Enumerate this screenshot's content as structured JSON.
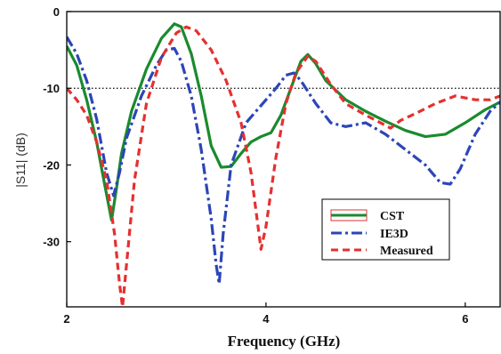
{
  "chart_data": {
    "type": "line",
    "title": "",
    "xlabel": "Frequency (GHz)",
    "ylabel": "|S11| (dB)",
    "xlim": [
      2.0,
      6.35
    ],
    "ylim": [
      -38.5,
      0
    ],
    "x_ticks": [
      2,
      4,
      6
    ],
    "y_ticks": [
      0,
      -10,
      -20,
      -30
    ],
    "x_tick_labels": [
      "2",
      "4",
      "6"
    ],
    "y_tick_labels": [
      "0",
      "-10",
      "-20",
      "-30"
    ],
    "grid": false,
    "legend_position": "lower-right",
    "reference_line": {
      "y": -10,
      "style": "dotted",
      "color": "#000000"
    },
    "series": [
      {
        "name": "CST",
        "color": "#1a8a2e",
        "style": "solid",
        "points": [
          [
            2.0,
            -4.5
          ],
          [
            2.1,
            -7.0
          ],
          [
            2.2,
            -11.5
          ],
          [
            2.3,
            -17.0
          ],
          [
            2.38,
            -22.5
          ],
          [
            2.45,
            -27.2
          ],
          [
            2.5,
            -23.0
          ],
          [
            2.55,
            -18.5
          ],
          [
            2.65,
            -13.0
          ],
          [
            2.8,
            -7.5
          ],
          [
            2.95,
            -3.5
          ],
          [
            3.08,
            -1.6
          ],
          [
            3.15,
            -2.0
          ],
          [
            3.25,
            -5.5
          ],
          [
            3.35,
            -11.0
          ],
          [
            3.45,
            -17.5
          ],
          [
            3.55,
            -20.3
          ],
          [
            3.65,
            -20.2
          ],
          [
            3.75,
            -18.5
          ],
          [
            3.85,
            -17.0
          ],
          [
            3.95,
            -16.3
          ],
          [
            4.05,
            -15.8
          ],
          [
            4.15,
            -13.5
          ],
          [
            4.25,
            -10.0
          ],
          [
            4.35,
            -6.5
          ],
          [
            4.42,
            -5.6
          ],
          [
            4.5,
            -6.8
          ],
          [
            4.6,
            -9.0
          ],
          [
            4.8,
            -11.5
          ],
          [
            5.0,
            -13.0
          ],
          [
            5.2,
            -14.3
          ],
          [
            5.4,
            -15.5
          ],
          [
            5.6,
            -16.3
          ],
          [
            5.8,
            -16.0
          ],
          [
            6.0,
            -14.5
          ],
          [
            6.2,
            -12.8
          ],
          [
            6.35,
            -11.8
          ]
        ]
      },
      {
        "name": "IE3D",
        "color": "#2c45b8",
        "style": "dash-dot",
        "points": [
          [
            2.0,
            -3.3
          ],
          [
            2.1,
            -5.5
          ],
          [
            2.2,
            -9.0
          ],
          [
            2.3,
            -14.0
          ],
          [
            2.4,
            -21.0
          ],
          [
            2.47,
            -24.0
          ],
          [
            2.53,
            -21.0
          ],
          [
            2.6,
            -16.5
          ],
          [
            2.75,
            -11.0
          ],
          [
            2.9,
            -7.0
          ],
          [
            3.0,
            -5.0
          ],
          [
            3.08,
            -4.8
          ],
          [
            3.15,
            -6.5
          ],
          [
            3.25,
            -11.0
          ],
          [
            3.35,
            -18.0
          ],
          [
            3.45,
            -27.0
          ],
          [
            3.5,
            -33.0
          ],
          [
            3.53,
            -35.5
          ],
          [
            3.57,
            -29.0
          ],
          [
            3.65,
            -20.0
          ],
          [
            3.8,
            -14.5
          ],
          [
            4.0,
            -11.5
          ],
          [
            4.1,
            -10.0
          ],
          [
            4.2,
            -8.3
          ],
          [
            4.28,
            -8.0
          ],
          [
            4.35,
            -9.0
          ],
          [
            4.5,
            -12.0
          ],
          [
            4.65,
            -14.5
          ],
          [
            4.8,
            -15.0
          ],
          [
            5.0,
            -14.5
          ],
          [
            5.2,
            -16.0
          ],
          [
            5.4,
            -18.0
          ],
          [
            5.6,
            -20.0
          ],
          [
            5.75,
            -22.3
          ],
          [
            5.85,
            -22.5
          ],
          [
            5.95,
            -20.5
          ],
          [
            6.1,
            -16.0
          ],
          [
            6.25,
            -13.0
          ],
          [
            6.35,
            -11.8
          ]
        ]
      },
      {
        "name": "Measured",
        "color": "#e53030",
        "style": "dashed",
        "points": [
          [
            2.0,
            -10.0
          ],
          [
            2.1,
            -11.5
          ],
          [
            2.2,
            -13.5
          ],
          [
            2.3,
            -17.0
          ],
          [
            2.4,
            -22.0
          ],
          [
            2.48,
            -29.0
          ],
          [
            2.53,
            -35.5
          ],
          [
            2.56,
            -38.5
          ],
          [
            2.6,
            -33.0
          ],
          [
            2.68,
            -22.0
          ],
          [
            2.8,
            -12.0
          ],
          [
            2.95,
            -6.0
          ],
          [
            3.1,
            -2.8
          ],
          [
            3.2,
            -2.0
          ],
          [
            3.3,
            -2.5
          ],
          [
            3.45,
            -5.0
          ],
          [
            3.6,
            -9.0
          ],
          [
            3.75,
            -14.5
          ],
          [
            3.85,
            -21.0
          ],
          [
            3.92,
            -28.0
          ],
          [
            3.95,
            -31.0
          ],
          [
            4.0,
            -28.0
          ],
          [
            4.1,
            -19.0
          ],
          [
            4.2,
            -12.0
          ],
          [
            4.3,
            -8.0
          ],
          [
            4.42,
            -5.8
          ],
          [
            4.5,
            -6.5
          ],
          [
            4.65,
            -9.5
          ],
          [
            4.8,
            -12.0
          ],
          [
            5.0,
            -13.5
          ],
          [
            5.15,
            -14.5
          ],
          [
            5.25,
            -15.2
          ],
          [
            5.35,
            -14.2
          ],
          [
            5.5,
            -13.3
          ],
          [
            5.7,
            -12.0
          ],
          [
            5.9,
            -11.0
          ],
          [
            6.1,
            -11.5
          ],
          [
            6.25,
            -11.5
          ],
          [
            6.35,
            -11.0
          ]
        ]
      }
    ]
  }
}
